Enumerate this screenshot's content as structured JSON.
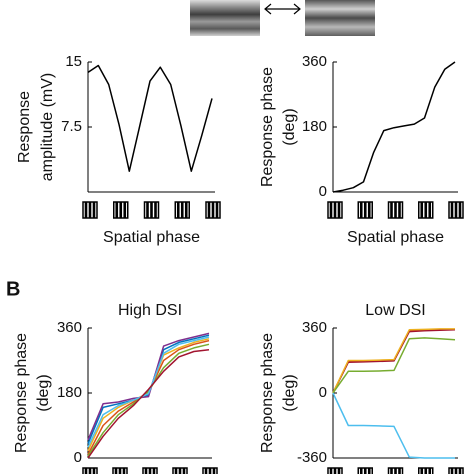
{
  "panel_label": "B",
  "chart_data": [
    {
      "type": "line",
      "ylabel": [
        "Response",
        "amplitude (mV)"
      ],
      "xlabel": "Spatial phase",
      "ylim": [
        0,
        15
      ],
      "yticks": [
        7.5,
        15
      ],
      "series": [
        {
          "color": "#000000",
          "values": [
            13.8,
            14.6,
            12.4,
            7.8,
            2.4,
            7.6,
            12.8,
            14.4,
            12.4,
            7.6,
            2.4,
            6.5,
            10.8
          ]
        }
      ]
    },
    {
      "type": "line",
      "ylabel": [
        "Response phase",
        "(deg)"
      ],
      "xlabel": "Spatial phase",
      "ylim": [
        0,
        360
      ],
      "yticks": [
        0,
        180,
        360
      ],
      "series": [
        {
          "color": "#000000",
          "values": [
            0,
            5,
            12,
            28,
            110,
            170,
            178,
            183,
            188,
            205,
            290,
            340,
            360
          ]
        }
      ]
    },
    {
      "type": "line",
      "title": "High DSI",
      "ylabel": [
        "Response phase",
        "(deg)"
      ],
      "ylim": [
        0,
        360
      ],
      "yticks": [
        0,
        180,
        360
      ],
      "series": [
        {
          "color": "#0072bd",
          "values": [
            40,
            140,
            150,
            160,
            175,
            300,
            320,
            330,
            340
          ]
        },
        {
          "color": "#d95319",
          "values": [
            10,
            90,
            130,
            155,
            180,
            270,
            300,
            315,
            325
          ]
        },
        {
          "color": "#edb120",
          "values": [
            20,
            110,
            140,
            160,
            180,
            285,
            305,
            320,
            330
          ]
        },
        {
          "color": "#7e2f8e",
          "values": [
            50,
            150,
            155,
            165,
            170,
            310,
            325,
            335,
            345
          ]
        },
        {
          "color": "#77ac30",
          "values": [
            5,
            70,
            120,
            150,
            185,
            250,
            290,
            305,
            315
          ]
        },
        {
          "color": "#4dbeee",
          "values": [
            30,
            120,
            145,
            160,
            178,
            290,
            315,
            325,
            335
          ]
        },
        {
          "color": "#a2142f",
          "values": [
            0,
            60,
            110,
            145,
            190,
            240,
            280,
            295,
            300
          ]
        }
      ]
    },
    {
      "type": "line",
      "title": "Low DSI",
      "ylabel": [
        "Response phase",
        "(deg)"
      ],
      "ylim": [
        -360,
        360
      ],
      "yticks": [
        -360,
        0,
        360
      ],
      "series": [
        {
          "color": "#d95319",
          "values": [
            0,
            175,
            175,
            178,
            180,
            345,
            350,
            350,
            352
          ]
        },
        {
          "color": "#a2142f",
          "values": [
            0,
            170,
            172,
            175,
            178,
            340,
            345,
            348,
            350
          ]
        },
        {
          "color": "#edb120",
          "values": [
            0,
            180,
            180,
            182,
            185,
            350,
            352,
            355,
            355
          ]
        },
        {
          "color": "#77ac30",
          "values": [
            0,
            120,
            120,
            122,
            125,
            300,
            305,
            300,
            295
          ]
        },
        {
          "color": "#4dbeee",
          "values": [
            0,
            -180,
            -180,
            -182,
            -185,
            -355,
            -360,
            -360,
            -360
          ]
        }
      ]
    }
  ]
}
